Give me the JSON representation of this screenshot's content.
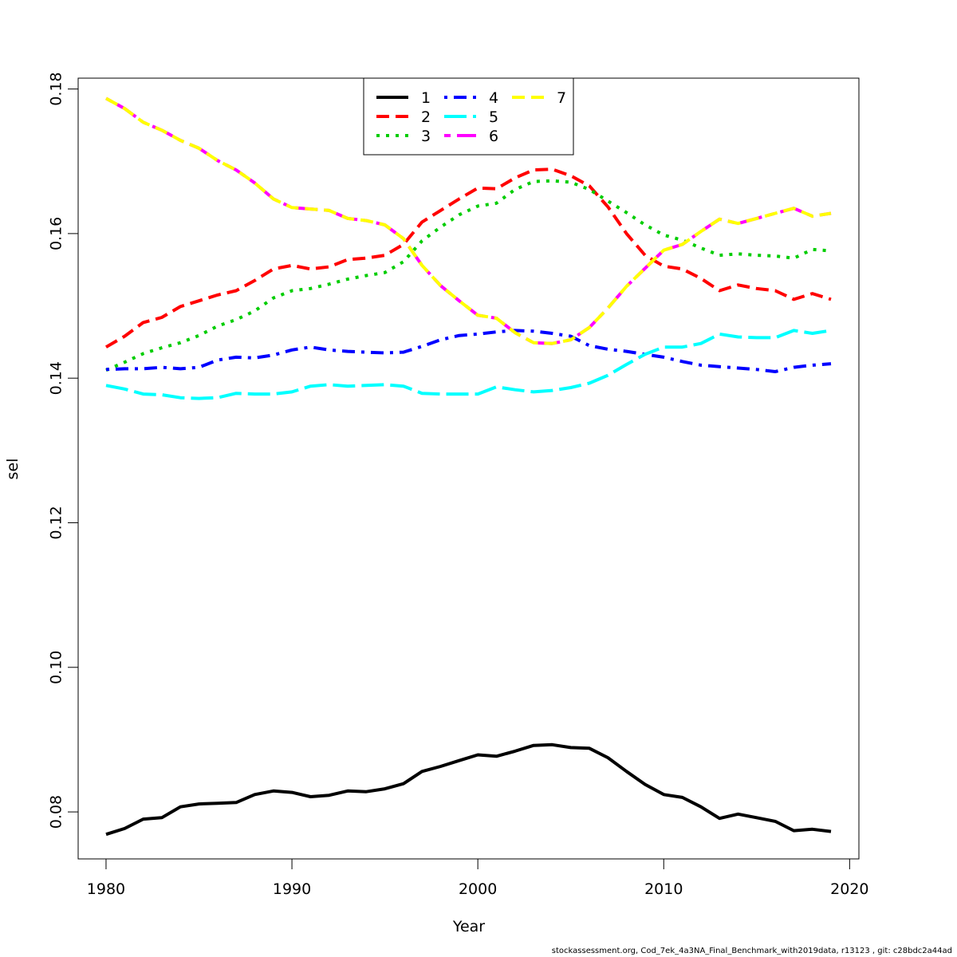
{
  "chart_data": {
    "type": "line",
    "xlabel": "Year",
    "ylabel": "sel",
    "xlim": [
      1978.5,
      2020.5
    ],
    "ylim": [
      0.0735,
      0.1815
    ],
    "x_ticks": [
      1980,
      1990,
      2000,
      2010,
      2020
    ],
    "y_ticks": [
      0.08,
      0.1,
      0.12,
      0.14,
      0.16,
      0.18
    ],
    "x_tick_labels": [
      "1980",
      "1990",
      "2000",
      "2010",
      "2020"
    ],
    "y_tick_labels": [
      "0.08",
      "0.10",
      "0.12",
      "0.14",
      "0.16",
      "0.18"
    ],
    "legend_position": "top-center",
    "x": [
      1980,
      1981,
      1982,
      1983,
      1984,
      1985,
      1986,
      1987,
      1988,
      1989,
      1990,
      1991,
      1992,
      1993,
      1994,
      1995,
      1996,
      1997,
      1998,
      1999,
      2000,
      2001,
      2002,
      2003,
      2004,
      2005,
      2006,
      2007,
      2008,
      2009,
      2010,
      2011,
      2012,
      2013,
      2014,
      2015,
      2016,
      2017,
      2018,
      2019
    ],
    "series": [
      {
        "name": "1",
        "color": "#000000",
        "dash": "solid",
        "values": [
          0.0769,
          0.0777,
          0.079,
          0.0792,
          0.0807,
          0.0811,
          0.0812,
          0.0813,
          0.0824,
          0.0829,
          0.0827,
          0.0821,
          0.0823,
          0.0829,
          0.0828,
          0.0832,
          0.0839,
          0.0856,
          0.0863,
          0.0871,
          0.0879,
          0.0877,
          0.0884,
          0.0892,
          0.0893,
          0.0889,
          0.0888,
          0.0875,
          0.0856,
          0.0838,
          0.0824,
          0.082,
          0.0807,
          0.0791,
          0.0797,
          0.0792,
          0.0787,
          0.0774,
          0.0776,
          0.0773
        ]
      },
      {
        "name": "2",
        "color": "#ff0000",
        "dash": "dashed",
        "values": [
          0.1443,
          0.1458,
          0.1477,
          0.1484,
          0.1499,
          0.1507,
          0.1515,
          0.1521,
          0.1535,
          0.1551,
          0.1556,
          0.1551,
          0.1554,
          0.1564,
          0.1566,
          0.157,
          0.1585,
          0.1616,
          0.1632,
          0.1648,
          0.1663,
          0.1662,
          0.1677,
          0.1688,
          0.1689,
          0.168,
          0.1666,
          0.1637,
          0.16,
          0.157,
          0.1555,
          0.1551,
          0.1538,
          0.1521,
          0.1529,
          0.1524,
          0.1521,
          0.1509,
          0.1517,
          0.1509
        ]
      },
      {
        "name": "3",
        "color": "#00cd00",
        "dash": "dotted",
        "values": [
          0.1411,
          0.1422,
          0.1434,
          0.1442,
          0.1449,
          0.1459,
          0.1472,
          0.1481,
          0.1493,
          0.1511,
          0.1521,
          0.1524,
          0.153,
          0.1537,
          0.1542,
          0.1546,
          0.1561,
          0.159,
          0.1609,
          0.1626,
          0.1638,
          0.1642,
          0.1661,
          0.1672,
          0.1673,
          0.1671,
          0.1661,
          0.1645,
          0.1629,
          0.1612,
          0.1598,
          0.1591,
          0.158,
          0.157,
          0.1572,
          0.157,
          0.1569,
          0.1566,
          0.1578,
          0.1576
        ]
      },
      {
        "name": "4",
        "color": "#0000ff",
        "dash": "dashdot",
        "values": [
          0.1412,
          0.1413,
          0.1413,
          0.1415,
          0.1413,
          0.1415,
          0.1425,
          0.1429,
          0.1428,
          0.1432,
          0.1439,
          0.1443,
          0.1439,
          0.1437,
          0.1436,
          0.1435,
          0.1436,
          0.1444,
          0.1453,
          0.1459,
          0.1461,
          0.1464,
          0.1466,
          0.1465,
          0.1462,
          0.1458,
          0.1445,
          0.144,
          0.1437,
          0.1433,
          0.1429,
          0.1423,
          0.1418,
          0.1416,
          0.1414,
          0.1412,
          0.1409,
          0.1415,
          0.1418,
          0.142
        ]
      },
      {
        "name": "5",
        "color": "#00ffff",
        "dash": "longdash",
        "values": [
          0.139,
          0.1385,
          0.1378,
          0.1377,
          0.1373,
          0.1372,
          0.1373,
          0.1379,
          0.1378,
          0.1378,
          0.1381,
          0.1389,
          0.1391,
          0.1389,
          0.139,
          0.1391,
          0.1389,
          0.1379,
          0.1378,
          0.1378,
          0.1378,
          0.1388,
          0.1384,
          0.1381,
          0.1383,
          0.1387,
          0.1393,
          0.1404,
          0.1419,
          0.1433,
          0.1443,
          0.1443,
          0.1448,
          0.1461,
          0.1457,
          0.1456,
          0.1456,
          0.1466,
          0.1462,
          0.1466
        ]
      },
      {
        "name": "6",
        "color": "#ff00ff",
        "dash": "twodash",
        "values": [
          0.1787,
          0.1773,
          0.1754,
          0.1743,
          0.1729,
          0.1718,
          0.1701,
          0.1688,
          0.167,
          0.1648,
          0.1636,
          0.1634,
          0.1632,
          0.1621,
          0.1618,
          0.1612,
          0.1593,
          0.1556,
          0.1528,
          0.1507,
          0.1487,
          0.1483,
          0.1463,
          0.1449,
          0.1448,
          0.1453,
          0.147,
          0.1497,
          0.1527,
          0.1552,
          0.1577,
          0.1585,
          0.1603,
          0.162,
          0.1614,
          0.1621,
          0.1628,
          0.1635,
          0.1624,
          0.1628
        ]
      },
      {
        "name": "7",
        "color": "#ffff00",
        "dash": "dashed",
        "values": [
          0.1787,
          0.1773,
          0.1754,
          0.1743,
          0.1729,
          0.1718,
          0.1701,
          0.1688,
          0.167,
          0.1648,
          0.1636,
          0.1634,
          0.1632,
          0.1621,
          0.1618,
          0.1612,
          0.1593,
          0.1556,
          0.1528,
          0.1507,
          0.1487,
          0.1483,
          0.1463,
          0.1449,
          0.1448,
          0.1453,
          0.147,
          0.1497,
          0.1527,
          0.1552,
          0.1577,
          0.1585,
          0.1603,
          0.162,
          0.1614,
          0.1621,
          0.1628,
          0.1635,
          0.1624,
          0.1628
        ]
      }
    ]
  },
  "footer": "stockassessment.org, Cod_7ek_4a3NA_Final_Benchmark_with2019data, r13123 , git: c28bdc2a44ad"
}
